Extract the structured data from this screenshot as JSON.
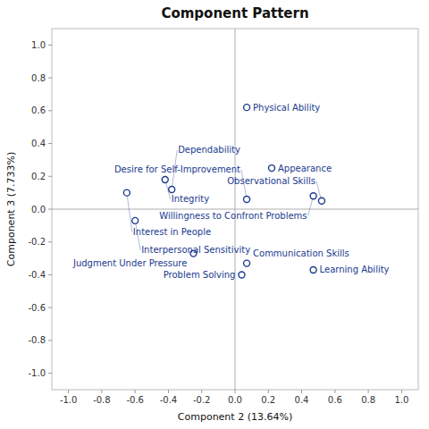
{
  "chart_data": {
    "type": "scatter",
    "title": "Component Pattern",
    "x_label": "Component 2 (13.64%)",
    "y_label": "Component 3 (7.733%)",
    "labels": [
      "Physical Ability",
      "Appearance",
      "Willingness to Confront Problems",
      "Observational Skills",
      "Desire for Self-Improvement",
      "Integrity",
      "Dependability",
      "Interest in People",
      "Interpersonal Sensitivity",
      "Judgment Under Pressure",
      "Communication Skills",
      "Problem Solving",
      "Learning Ability"
    ],
    "x": [
      0.07,
      0.22,
      0.47,
      0.52,
      0.07,
      -0.42,
      -0.38,
      -0.65,
      -0.6,
      -0.25,
      0.07,
      0.04,
      0.47
    ],
    "values": [
      0.62,
      0.25,
      0.08,
      0.05,
      0.06,
      0.18,
      0.12,
      0.1,
      -0.07,
      -0.27,
      -0.33,
      -0.4,
      -0.37
    ],
    "color": "#1a3a8f",
    "marker": "circle",
    "grid": false,
    "xlim": [
      -1.1,
      1.1
    ],
    "ylim": [
      -1.1,
      1.1
    ],
    "xticks": [
      {
        "value": -1.0,
        "label": "-1.0"
      },
      {
        "value": -0.8,
        "label": "-0.8"
      },
      {
        "value": -0.6,
        "label": "-0.6"
      },
      {
        "value": -0.4,
        "label": "-0.4"
      },
      {
        "value": -0.2,
        "label": "-0.2"
      },
      {
        "value": 0.0,
        "label": "0.0"
      },
      {
        "value": 0.2,
        "label": "0.2"
      },
      {
        "value": 0.4,
        "label": "0.4"
      },
      {
        "value": 0.6,
        "label": "0.6"
      },
      {
        "value": 0.8,
        "label": "0.8"
      },
      {
        "value": 1.0,
        "label": "1.0"
      }
    ],
    "yticks": [
      {
        "value": -1.0,
        "label": "-1.0"
      },
      {
        "value": -0.8,
        "label": "-0.8"
      },
      {
        "value": -0.6,
        "label": "-0.6"
      },
      {
        "value": -0.4,
        "label": "-0.4"
      },
      {
        "value": -0.2,
        "label": "-0.2"
      },
      {
        "value": 0.0,
        "label": "0.0"
      },
      {
        "value": 0.2,
        "label": "0.2"
      },
      {
        "value": 0.4,
        "label": "0.4"
      },
      {
        "value": 0.6,
        "label": "0.6"
      },
      {
        "value": 0.8,
        "label": "0.8"
      },
      {
        "value": 1.0,
        "label": "1.0"
      }
    ]
  }
}
